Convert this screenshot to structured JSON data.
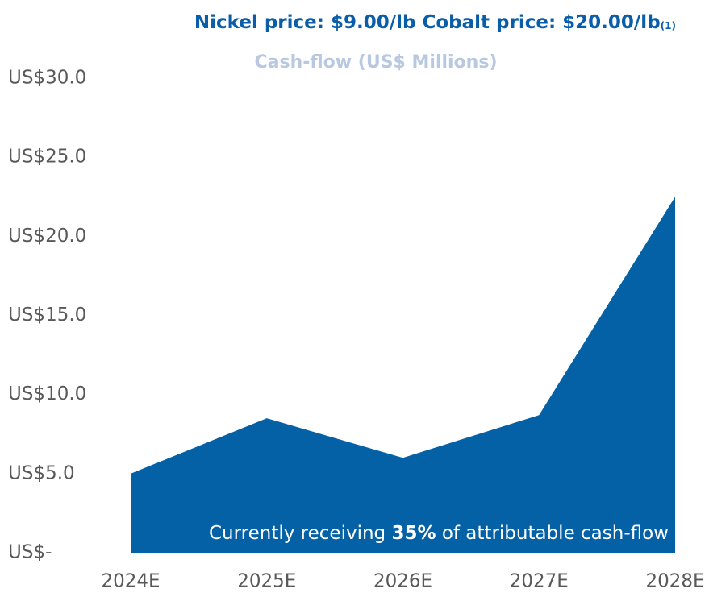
{
  "chart_data": {
    "type": "area",
    "title": "Nickel price: $9.00/lb  Cobalt price: $20.00/lb",
    "title_note": "(1)",
    "subtitle": "Cash-flow (US$ Millions)",
    "annotation": {
      "prefix": "Currently receiving",
      "bold": "35%",
      "suffix": "of attributable cash-flow"
    },
    "categories": [
      "2024E",
      "2025E",
      "2026E",
      "2027E",
      "2028E"
    ],
    "values": [
      5.0,
      8.5,
      6.0,
      8.7,
      22.5
    ],
    "color": "#0461a6",
    "ylim": [
      0,
      30
    ],
    "yticks": [
      {
        "value": 0,
        "label": "US$-"
      },
      {
        "value": 5,
        "label": "US$5.0"
      },
      {
        "value": 10,
        "label": "US$10.0"
      },
      {
        "value": 15,
        "label": "US$15.0"
      },
      {
        "value": 20,
        "label": "US$20.0"
      },
      {
        "value": 25,
        "label": "US$25.0"
      },
      {
        "value": 30,
        "label": "US$30.0"
      }
    ],
    "grid": false
  }
}
